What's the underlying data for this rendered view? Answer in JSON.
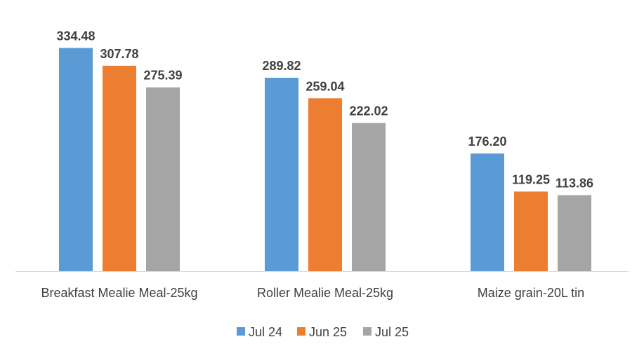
{
  "chart_data": {
    "type": "bar",
    "categories": [
      "Breakfast Mealie Meal-25kg",
      "Roller Mealie Meal-25kg",
      "Maize grain-20L tin"
    ],
    "series": [
      {
        "name": "Jul 24",
        "values": [
          334.48,
          289.82,
          176.2
        ],
        "labels": [
          "334.48",
          "289.82",
          "176.20"
        ],
        "color": "#5B9BD5"
      },
      {
        "name": "Jun 25",
        "values": [
          307.78,
          259.04,
          119.25
        ],
        "labels": [
          "307.78",
          "259.04",
          "119.25"
        ],
        "color": "#ED7D31"
      },
      {
        "name": "Jul 25",
        "values": [
          275.39,
          222.02,
          113.86
        ],
        "labels": [
          "275.39",
          "222.02",
          "113.86"
        ],
        "color": "#A5A5A5"
      }
    ],
    "ylim": [
      0,
      400
    ],
    "grid": false,
    "legend_position": "bottom",
    "axis_color": "#D9D9D9"
  }
}
